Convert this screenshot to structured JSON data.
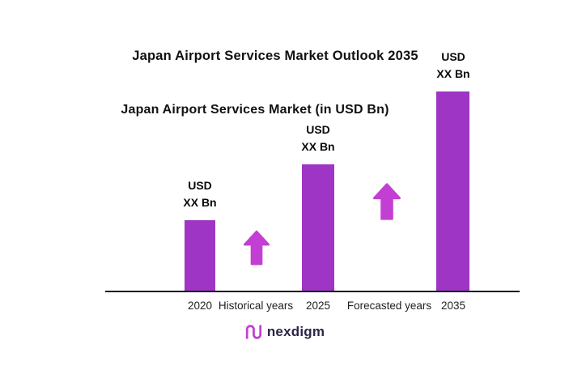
{
  "title": "Japan Airport Services Market Outlook 2035",
  "subtitle": "Japan Airport Services Market (in USD Bn)",
  "chart_data": {
    "type": "bar",
    "categories": [
      "2020",
      "2025",
      "2035"
    ],
    "values": [
      88,
      157,
      247
    ],
    "values_note": "relative bar heights in px; no numeric axis shown, values masked as XX",
    "bar_labels": [
      {
        "line1": "USD",
        "line2": "XX Bn"
      },
      {
        "line1": "USD",
        "line2": "XX Bn"
      },
      {
        "line1": "USD",
        "line2": "XX Bn"
      }
    ],
    "annotations": [
      {
        "label": "Historical years",
        "between": [
          "2020",
          "2025"
        ]
      },
      {
        "label": "Forecasted years",
        "between": [
          "2025",
          "2035"
        ]
      }
    ],
    "bar_color": "#9E35C4",
    "arrow_color": "#C33FD3",
    "axis": {
      "x_axis_visible": true,
      "y_axis_visible": false,
      "gridlines": false,
      "legend": "none"
    }
  },
  "logo": {
    "text": "nexdigm",
    "icon": "nexdigm-wave-icon",
    "icon_color": "#C33FD3",
    "text_color": "#2E2447"
  }
}
